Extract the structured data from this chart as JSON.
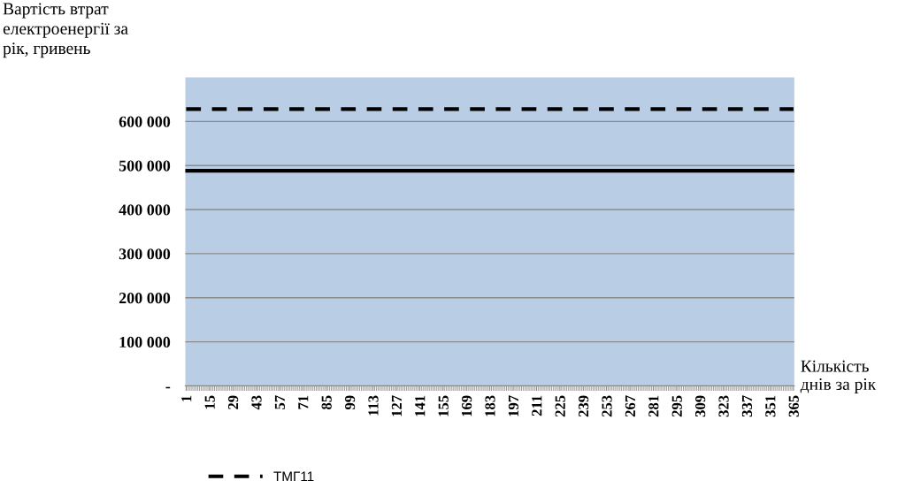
{
  "chart_data": {
    "type": "line",
    "ylabel": "Вартість втрат\nелектроенергії за\nрік, гривень",
    "xlabel": "Кількість\nднів за рік",
    "x": [
      1,
      365
    ],
    "series": [
      {
        "name": "ТМГ11",
        "color": "#000000",
        "values": [
          628000,
          628000
        ],
        "line_style": "dashed"
      },
      {
        "color": "#000000",
        "values": [
          488000,
          488000
        ],
        "line_style": "solid"
      }
    ],
    "xlim": [
      0.5,
      365.5
    ],
    "xticks": [
      1,
      15,
      29,
      43,
      57,
      71,
      85,
      99,
      113,
      127,
      141,
      155,
      169,
      183,
      197,
      211,
      225,
      239,
      253,
      267,
      281,
      295,
      309,
      323,
      337,
      351,
      365
    ],
    "ylim": [
      0,
      700000
    ],
    "yticks": [
      {
        "value": 0,
        "label": "-"
      },
      {
        "value": 100000,
        "label": "100 000"
      },
      {
        "value": 200000,
        "label": "200 000"
      },
      {
        "value": 300000,
        "label": "300 000"
      },
      {
        "value": 400000,
        "label": "400 000"
      },
      {
        "value": 500000,
        "label": "500 000"
      },
      {
        "value": 600000,
        "label": "600 000"
      }
    ],
    "grid": "y",
    "legend": "bottom",
    "marker": "none"
  }
}
